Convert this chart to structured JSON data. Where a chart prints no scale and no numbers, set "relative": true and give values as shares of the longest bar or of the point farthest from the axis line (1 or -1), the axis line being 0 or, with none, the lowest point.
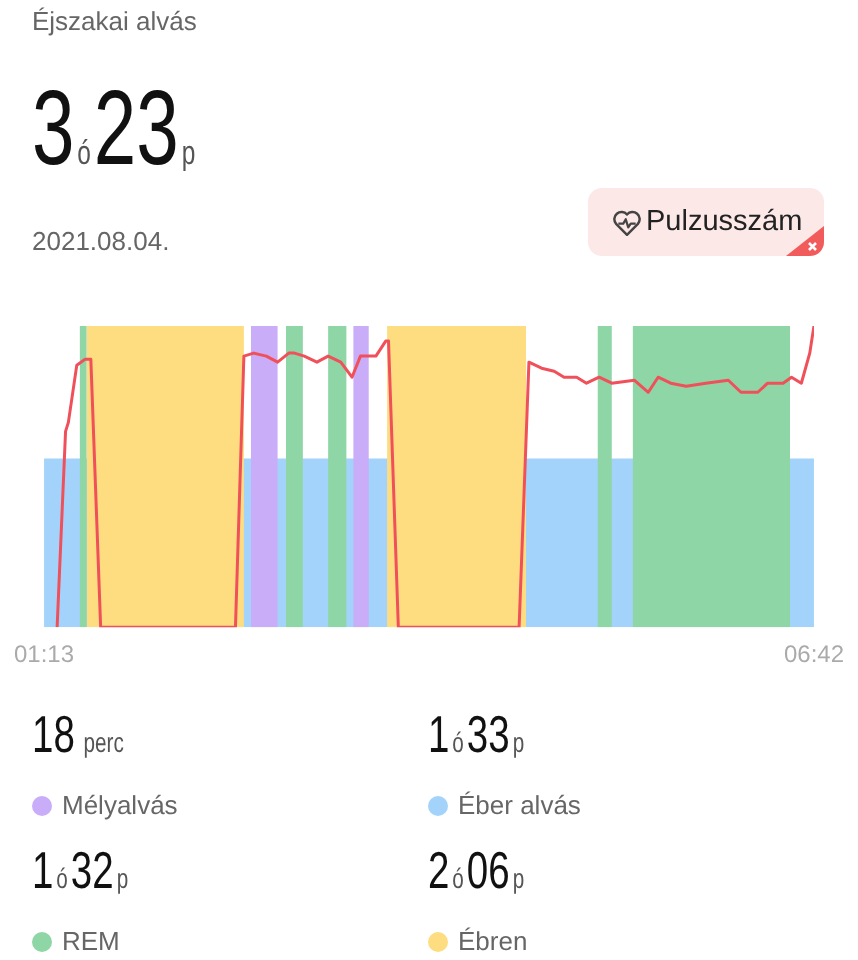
{
  "chart_data": {
    "type": "area",
    "title": "Éjszakai alvás",
    "subtitle": "3ó23p",
    "annotations": [
      "2021.08.04.",
      "Pulzusszám",
      "18 perc",
      "1ó33p",
      "1ó32p",
      "2ó06p"
    ],
    "relative": true,
    "xlim": [
      1.2167,
      6.7
    ],
    "xticks": [
      {
        "value": 1.2167,
        "label": "01:13"
      },
      {
        "value": 6.7,
        "label": "06:42"
      }
    ],
    "legend": "bottom",
    "series": [
      {
        "name": "Mélyalvás",
        "color": "#c9adf9",
        "x": [
          2.69,
          2.88,
          2.88,
          3.42,
          3.42,
          3.53
        ],
        "values": [
          1,
          1,
          0,
          0,
          1,
          1
        ]
      },
      {
        "name": "Éber alvás",
        "color": "#a3d3fb",
        "x": [
          1.2167,
          6.7
        ],
        "values": [
          0.56,
          0.56
        ]
      },
      {
        "name": "REM",
        "color": "#8fd6a6",
        "x": [
          1.47,
          1.52,
          1.52,
          2.94,
          2.94,
          3.06,
          3.06,
          3.24,
          3.24,
          3.37,
          3.37,
          5.16,
          5.16,
          5.26,
          5.26,
          5.41,
          5.41,
          6.53
        ],
        "values": [
          1,
          1,
          0,
          0,
          1,
          1,
          0,
          0,
          1,
          1,
          0,
          0,
          1,
          1,
          0,
          0,
          1,
          1
        ]
      },
      {
        "name": "Ébren",
        "color": "#fedc80",
        "x": [
          1.52,
          2.64,
          2.64,
          3.66,
          3.66,
          4.65
        ],
        "values": [
          1,
          1,
          0,
          0,
          1,
          1
        ]
      },
      {
        "type": "line",
        "color": "#f0505a",
        "x": [
          1.31,
          1.37,
          1.39,
          1.45,
          1.51,
          1.55,
          1.62,
          2.58,
          2.64,
          2.71,
          2.8,
          2.88,
          2.96,
          3.0,
          3.07,
          3.16,
          3.24,
          3.33,
          3.41,
          3.47,
          3.58,
          3.65,
          3.67,
          3.74,
          4.6,
          4.67,
          4.76,
          4.85,
          4.92,
          5.01,
          5.08,
          5.17,
          5.26,
          5.42,
          5.52,
          5.59,
          5.68,
          5.79,
          5.93,
          6.09,
          6.18,
          6.3,
          6.37,
          6.48,
          6.54,
          6.61,
          6.67,
          6.7
        ],
        "values": [
          0,
          0.65,
          0.68,
          0.87,
          0.89,
          0.89,
          0,
          0,
          0.9,
          0.91,
          0.9,
          0.88,
          0.91,
          0.91,
          0.9,
          0.88,
          0.9,
          0.88,
          0.83,
          0.9,
          0.9,
          0.95,
          0.95,
          0,
          0,
          0.88,
          0.86,
          0.85,
          0.83,
          0.83,
          0.81,
          0.83,
          0.81,
          0.82,
          0.78,
          0.83,
          0.81,
          0.8,
          0.81,
          0.82,
          0.78,
          0.78,
          0.81,
          0.81,
          0.83,
          0.81,
          0.91,
          1
        ]
      }
    ]
  }
}
